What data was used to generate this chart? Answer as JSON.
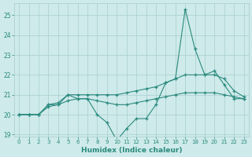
{
  "xlabel": "Humidex (Indice chaleur)",
  "x": [
    0,
    1,
    2,
    3,
    4,
    5,
    6,
    7,
    8,
    9,
    10,
    11,
    12,
    13,
    14,
    15,
    16,
    17,
    18,
    19,
    20,
    21,
    22,
    23
  ],
  "y_jagged": [
    20,
    20,
    20,
    20.5,
    20.5,
    21.0,
    20.8,
    20.8,
    20.0,
    19.6,
    18.7,
    19.3,
    19.8,
    19.8,
    20.5,
    21.6,
    21.8,
    25.3,
    23.3,
    22.0,
    22.2,
    21.5,
    20.8,
    20.8
  ],
  "y_smooth": [
    20,
    20,
    20,
    20.5,
    20.6,
    21.0,
    21.0,
    21.0,
    21.0,
    21.0,
    21.0,
    21.1,
    21.2,
    21.3,
    21.4,
    21.6,
    21.8,
    22.0,
    22.0,
    22.0,
    22.0,
    21.8,
    21.2,
    20.9
  ],
  "y_trend": [
    20,
    20,
    20,
    20.4,
    20.5,
    20.7,
    20.8,
    20.8,
    20.7,
    20.6,
    20.5,
    20.5,
    20.6,
    20.7,
    20.8,
    20.9,
    21.0,
    21.1,
    21.1,
    21.1,
    21.1,
    21.0,
    20.9,
    20.8
  ],
  "line_color": "#2a8a7e",
  "bg_color": "#ceeaea",
  "grid_color": "#aacece",
  "tick_color": "#2a8a7e",
  "ylim_min": 18.9,
  "ylim_max": 25.6,
  "yticks": [
    19,
    20,
    21,
    22,
    23,
    24,
    25
  ],
  "xticks": [
    0,
    1,
    2,
    3,
    4,
    5,
    6,
    7,
    8,
    9,
    10,
    11,
    12,
    13,
    14,
    15,
    16,
    17,
    18,
    19,
    20,
    21,
    22,
    23
  ],
  "xlim_min": -0.5,
  "xlim_max": 23.5
}
